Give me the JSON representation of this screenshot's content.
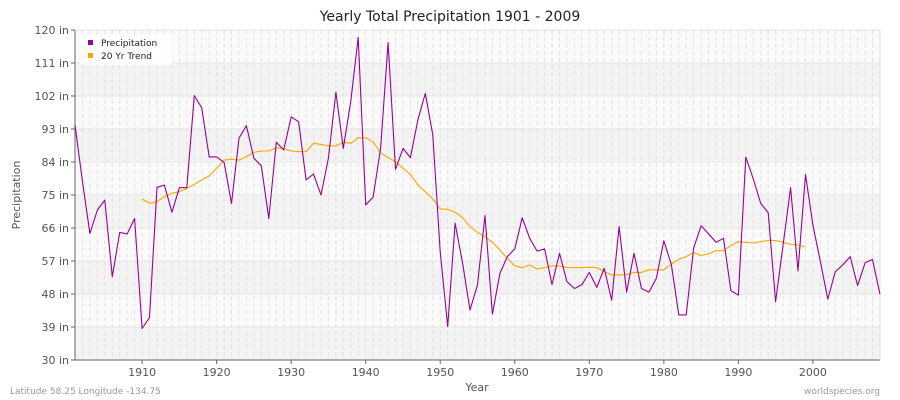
{
  "chart_data": {
    "type": "line",
    "title": "Yearly Total Precipitation 1901 - 2009",
    "xlabel": "Year",
    "ylabel": "Precipitation",
    "xlim": [
      1901,
      2009
    ],
    "ylim": [
      30,
      120
    ],
    "yticks": [
      "30 in",
      "39 in",
      "48 in",
      "57 in",
      "66 in",
      "75 in",
      "84 in",
      "93 in",
      "102 in",
      "111 in",
      "120 in"
    ],
    "xticks": [
      "1910",
      "1920",
      "1930",
      "1940",
      "1950",
      "1960",
      "1970",
      "1980",
      "1990",
      "2000"
    ],
    "grid": true,
    "legend_position": "top-left",
    "series": [
      {
        "name": "Precipitation",
        "color": "#990099",
        "x_start": 1901,
        "values": [
          94.1,
          78.6,
          64.5,
          70.9,
          73.6,
          52.7,
          64.8,
          64.4,
          68.6,
          38.6,
          41.6,
          77.1,
          77.7,
          70.3,
          77.0,
          77.0,
          102.1,
          98.8,
          85.4,
          85.4,
          83.9,
          72.7,
          90.5,
          93.9,
          85.0,
          83.0,
          68.6,
          89.4,
          87.3,
          96.3,
          95.0,
          79.1,
          80.7,
          75.0,
          85.0,
          103.0,
          87.7,
          100.6,
          118.0,
          72.3,
          74.4,
          87.7,
          116.6,
          82.0,
          87.7,
          85.2,
          95.5,
          102.7,
          91.4,
          59.5,
          39.1,
          67.3,
          56.4,
          43.6,
          50.5,
          69.4,
          42.5,
          53.6,
          58.2,
          60.3,
          68.8,
          63.2,
          59.7,
          60.3,
          50.6,
          59.1,
          51.4,
          49.5,
          50.5,
          53.9,
          49.8,
          55.0,
          46.3,
          66.4,
          48.5,
          59.1,
          49.5,
          48.5,
          52.3,
          62.5,
          56.1,
          42.3,
          42.3,
          60.6,
          66.6,
          64.4,
          62.1,
          63.2,
          48.9,
          47.7,
          85.3,
          79.4,
          72.7,
          70.2,
          45.9,
          61.4,
          77.0,
          54.3,
          80.6,
          66.8,
          56.8,
          46.6,
          54.1,
          55.9,
          58.2,
          50.3,
          56.5,
          57.4,
          47.9
        ]
      },
      {
        "name": "20 Yr Trend",
        "color": "#ffa500",
        "x_start": 1910,
        "values": [
          73.9,
          72.7,
          73.2,
          74.6,
          75.5,
          75.9,
          76.8,
          77.9,
          79.1,
          80.2,
          82.3,
          84.5,
          84.8,
          84.5,
          85.5,
          86.6,
          87.0,
          87.0,
          87.9,
          87.6,
          87.0,
          86.8,
          86.8,
          89.1,
          88.8,
          88.4,
          88.4,
          89.4,
          89.1,
          90.6,
          90.6,
          89.5,
          86.5,
          85.2,
          84.1,
          82.3,
          80.6,
          77.7,
          75.9,
          73.9,
          71.2,
          71.1,
          70.3,
          68.8,
          66.4,
          64.8,
          63.6,
          62.1,
          60.0,
          57.7,
          55.7,
          55.2,
          55.9,
          54.8,
          55.2,
          55.7,
          55.6,
          55.2,
          55.2,
          55.2,
          55.3,
          55.2,
          54.1,
          53.2,
          53.2,
          53.3,
          53.9,
          53.9,
          54.6,
          54.6,
          54.6,
          56.1,
          57.5,
          58.2,
          59.3,
          58.5,
          59.0,
          59.8,
          59.8,
          61.2,
          62.3,
          62.1,
          61.9,
          62.3,
          62.6,
          62.6,
          62.1,
          61.5,
          61.4,
          60.8
        ]
      }
    ]
  },
  "footer": {
    "location": "Latitude 58.25 Longitude -134.75",
    "source": "worldspecies.org"
  }
}
